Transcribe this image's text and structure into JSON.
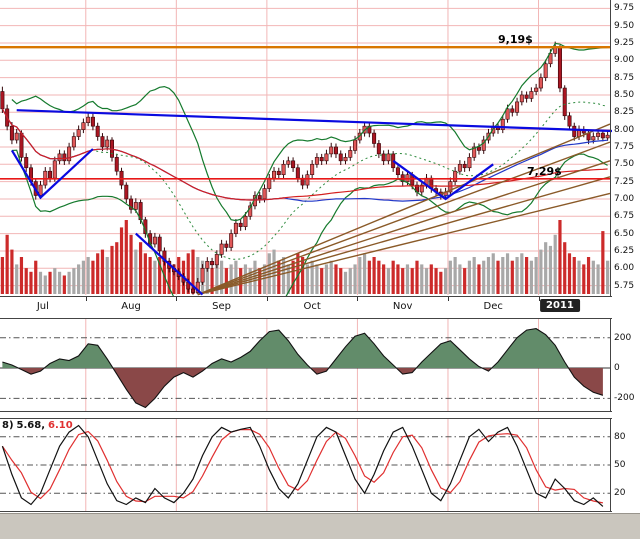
{
  "colors": {
    "grid_pink": "#f2b6b6",
    "panel_border": "#444444",
    "candle_up": "#e05858",
    "candle_down": "#aa1622",
    "candle_outline": "#33060a",
    "volume_up": "#a8a8a8",
    "volume_down": "#cc2a2a",
    "bollinger": "#157a2d",
    "bollinger_mid": "#2d8a3d",
    "ma_long": "#d42020",
    "ma_mid": "#2238c8",
    "trendline": "#0a0ae0",
    "fan": "#8a5a28",
    "osc_line": "#111111",
    "osc_fill_pos": "#628c6a",
    "osc_fill_neg": "#8a4848",
    "stoch_k": "#111111",
    "stoch_d": "#e03030",
    "chrome": "#cac6be",
    "axis_text": "#111111"
  },
  "chart_data": [
    {
      "type": "candlestick",
      "name": "daily-price-panel",
      "x_labels": [
        "Jul",
        "Aug",
        "Sep",
        "Oct",
        "Nov",
        "Dec",
        "2011"
      ],
      "month_start_bars": [
        0,
        18,
        37,
        56,
        75,
        94,
        113
      ],
      "y_ticks": [
        9.75,
        9.5,
        9.25,
        9.0,
        8.75,
        8.5,
        8.25,
        8.0,
        7.75,
        7.5,
        7.25,
        7.0,
        6.75,
        6.5,
        6.25,
        6.0,
        5.75
      ],
      "y_range": [
        5.6,
        9.87
      ],
      "grid": true,
      "candles": [
        [
          8.55,
          8.62,
          8.24,
          8.3
        ],
        [
          8.3,
          8.36,
          7.99,
          8.05
        ],
        [
          8.05,
          8.11,
          7.79,
          7.85
        ],
        [
          7.85,
          8.01,
          7.8,
          7.95
        ],
        [
          7.95,
          7.99,
          7.54,
          7.6
        ],
        [
          7.6,
          7.66,
          7.39,
          7.45
        ],
        [
          7.45,
          7.5,
          7.19,
          7.25
        ],
        [
          7.25,
          7.3,
          6.99,
          7.05
        ],
        [
          7.05,
          7.26,
          7.0,
          7.2
        ],
        [
          7.2,
          7.46,
          7.15,
          7.4
        ],
        [
          7.4,
          7.46,
          7.24,
          7.3
        ],
        [
          7.3,
          7.61,
          7.25,
          7.55
        ],
        [
          7.55,
          7.71,
          7.5,
          7.65
        ],
        [
          7.65,
          7.7,
          7.49,
          7.55
        ],
        [
          7.55,
          7.81,
          7.5,
          7.75
        ],
        [
          7.75,
          7.96,
          7.7,
          7.9
        ],
        [
          7.9,
          8.06,
          7.85,
          8.0
        ],
        [
          8.0,
          8.16,
          7.95,
          8.1
        ],
        [
          8.1,
          8.24,
          8.05,
          8.18
        ],
        [
          8.18,
          8.23,
          7.99,
          8.05
        ],
        [
          8.05,
          8.1,
          7.84,
          7.9
        ],
        [
          7.9,
          7.95,
          7.69,
          7.75
        ],
        [
          7.75,
          7.91,
          7.7,
          7.85
        ],
        [
          7.85,
          7.89,
          7.54,
          7.6
        ],
        [
          7.6,
          7.64,
          7.34,
          7.4
        ],
        [
          7.4,
          7.45,
          7.14,
          7.2
        ],
        [
          7.2,
          7.24,
          6.94,
          7.0
        ],
        [
          7.0,
          7.05,
          6.79,
          6.85
        ],
        [
          6.85,
          7.01,
          6.8,
          6.95
        ],
        [
          6.95,
          6.99,
          6.64,
          6.7
        ],
        [
          6.7,
          6.74,
          6.44,
          6.5
        ],
        [
          6.5,
          6.55,
          6.29,
          6.35
        ],
        [
          6.35,
          6.51,
          6.3,
          6.45
        ],
        [
          6.45,
          6.49,
          6.19,
          6.25
        ],
        [
          6.25,
          6.3,
          6.04,
          6.1
        ],
        [
          6.1,
          6.15,
          5.94,
          6.0
        ],
        [
          6.0,
          6.06,
          5.9,
          5.95
        ],
        [
          5.95,
          6.0,
          5.83,
          5.88
        ],
        [
          5.88,
          5.93,
          5.75,
          5.8
        ],
        [
          5.8,
          5.85,
          5.65,
          5.7
        ],
        [
          5.7,
          5.75,
          5.62,
          5.65
        ],
        [
          5.65,
          5.86,
          5.63,
          5.8
        ],
        [
          5.8,
          6.06,
          5.76,
          6.0
        ],
        [
          6.0,
          6.16,
          5.95,
          6.1
        ],
        [
          6.1,
          6.15,
          5.99,
          6.05
        ],
        [
          6.05,
          6.26,
          6.0,
          6.2
        ],
        [
          6.2,
          6.41,
          6.15,
          6.35
        ],
        [
          6.35,
          6.4,
          6.24,
          6.3
        ],
        [
          6.3,
          6.56,
          6.25,
          6.5
        ],
        [
          6.5,
          6.71,
          6.45,
          6.65
        ],
        [
          6.65,
          6.7,
          6.54,
          6.6
        ],
        [
          6.6,
          6.81,
          6.55,
          6.75
        ],
        [
          6.75,
          6.96,
          6.7,
          6.9
        ],
        [
          6.9,
          7.11,
          6.85,
          7.05
        ],
        [
          7.05,
          7.1,
          6.94,
          7.0
        ],
        [
          7.0,
          7.21,
          6.95,
          7.15
        ],
        [
          7.15,
          7.36,
          7.1,
          7.3
        ],
        [
          7.3,
          7.46,
          7.25,
          7.4
        ],
        [
          7.4,
          7.45,
          7.29,
          7.35
        ],
        [
          7.35,
          7.56,
          7.3,
          7.5
        ],
        [
          7.5,
          7.61,
          7.45,
          7.55
        ],
        [
          7.55,
          7.6,
          7.39,
          7.45
        ],
        [
          7.45,
          7.5,
          7.24,
          7.3
        ],
        [
          7.3,
          7.35,
          7.14,
          7.2
        ],
        [
          7.2,
          7.41,
          7.15,
          7.35
        ],
        [
          7.35,
          7.56,
          7.3,
          7.5
        ],
        [
          7.5,
          7.66,
          7.45,
          7.6
        ],
        [
          7.6,
          7.65,
          7.49,
          7.55
        ],
        [
          7.55,
          7.71,
          7.5,
          7.65
        ],
        [
          7.65,
          7.81,
          7.6,
          7.75
        ],
        [
          7.75,
          7.8,
          7.59,
          7.65
        ],
        [
          7.65,
          7.7,
          7.49,
          7.55
        ],
        [
          7.55,
          7.66,
          7.5,
          7.6
        ],
        [
          7.6,
          7.76,
          7.55,
          7.7
        ],
        [
          7.7,
          7.91,
          7.65,
          7.85
        ],
        [
          7.85,
          8.01,
          7.8,
          7.95
        ],
        [
          7.95,
          8.11,
          7.9,
          8.05
        ],
        [
          8.05,
          8.1,
          7.89,
          7.95
        ],
        [
          7.95,
          8.0,
          7.74,
          7.8
        ],
        [
          7.8,
          7.85,
          7.59,
          7.65
        ],
        [
          7.65,
          7.7,
          7.49,
          7.55
        ],
        [
          7.55,
          7.71,
          7.5,
          7.65
        ],
        [
          7.65,
          7.69,
          7.39,
          7.45
        ],
        [
          7.45,
          7.5,
          7.29,
          7.35
        ],
        [
          7.35,
          7.4,
          7.19,
          7.25
        ],
        [
          7.25,
          7.41,
          7.2,
          7.35
        ],
        [
          7.35,
          7.39,
          7.14,
          7.2
        ],
        [
          7.2,
          7.25,
          7.04,
          7.1
        ],
        [
          7.1,
          7.26,
          7.05,
          7.2
        ],
        [
          7.2,
          7.36,
          7.15,
          7.3
        ],
        [
          7.3,
          7.34,
          7.09,
          7.15
        ],
        [
          7.15,
          7.2,
          7.04,
          7.1
        ],
        [
          7.1,
          7.15,
          6.99,
          7.05
        ],
        [
          7.05,
          7.16,
          7.0,
          7.1
        ],
        [
          7.1,
          7.31,
          7.05,
          7.25
        ],
        [
          7.25,
          7.46,
          7.2,
          7.4
        ],
        [
          7.4,
          7.56,
          7.35,
          7.5
        ],
        [
          7.5,
          7.55,
          7.39,
          7.45
        ],
        [
          7.45,
          7.66,
          7.4,
          7.6
        ],
        [
          7.6,
          7.81,
          7.55,
          7.75
        ],
        [
          7.75,
          7.8,
          7.64,
          7.7
        ],
        [
          7.7,
          7.91,
          7.65,
          7.85
        ],
        [
          7.85,
          8.01,
          7.8,
          7.95
        ],
        [
          7.95,
          8.11,
          7.9,
          8.05
        ],
        [
          8.05,
          8.1,
          7.94,
          8.0
        ],
        [
          8.0,
          8.21,
          7.95,
          8.15
        ],
        [
          8.15,
          8.36,
          8.1,
          8.3
        ],
        [
          8.3,
          8.35,
          8.19,
          8.25
        ],
        [
          8.25,
          8.46,
          8.2,
          8.4
        ],
        [
          8.4,
          8.56,
          8.35,
          8.5
        ],
        [
          8.5,
          8.55,
          8.39,
          8.45
        ],
        [
          8.45,
          8.61,
          8.4,
          8.55
        ],
        [
          8.55,
          8.66,
          8.5,
          8.6
        ],
        [
          8.6,
          8.81,
          8.55,
          8.75
        ],
        [
          8.75,
          9.01,
          8.7,
          8.95
        ],
        [
          8.95,
          9.16,
          8.9,
          9.1
        ],
        [
          9.1,
          9.27,
          9.05,
          9.2
        ],
        [
          9.2,
          9.22,
          8.54,
          8.6
        ],
        [
          8.6,
          8.64,
          8.14,
          8.2
        ],
        [
          8.2,
          8.25,
          7.99,
          8.05
        ],
        [
          8.05,
          8.1,
          7.84,
          7.9
        ],
        [
          7.9,
          8.06,
          7.85,
          8.0
        ],
        [
          8.0,
          8.05,
          7.89,
          7.95
        ],
        [
          7.95,
          8.0,
          7.79,
          7.85
        ],
        [
          7.85,
          7.96,
          7.8,
          7.9
        ],
        [
          7.9,
          8.01,
          7.85,
          7.95
        ],
        [
          7.95,
          7.99,
          7.83,
          7.88
        ],
        [
          7.88,
          7.98,
          7.84,
          7.92
        ]
      ],
      "volume": [
        0.5,
        0.8,
        0.6,
        0.4,
        0.5,
        0.35,
        0.3,
        0.45,
        0.3,
        0.25,
        0.3,
        0.35,
        0.3,
        0.25,
        0.3,
        0.35,
        0.4,
        0.45,
        0.5,
        0.45,
        0.55,
        0.6,
        0.5,
        0.65,
        0.7,
        0.9,
        1.0,
        0.8,
        0.6,
        0.7,
        0.55,
        0.5,
        0.45,
        0.5,
        0.55,
        0.45,
        0.4,
        0.5,
        0.45,
        0.55,
        0.6,
        0.5,
        0.45,
        0.4,
        0.35,
        0.4,
        0.45,
        0.35,
        0.4,
        0.45,
        0.35,
        0.4,
        0.35,
        0.45,
        0.35,
        0.4,
        0.55,
        0.6,
        0.45,
        0.5,
        0.4,
        0.45,
        0.55,
        0.5,
        0.4,
        0.45,
        0.4,
        0.35,
        0.4,
        0.45,
        0.4,
        0.35,
        0.3,
        0.35,
        0.4,
        0.5,
        0.55,
        0.45,
        0.5,
        0.45,
        0.4,
        0.35,
        0.45,
        0.4,
        0.35,
        0.4,
        0.35,
        0.45,
        0.4,
        0.35,
        0.4,
        0.35,
        0.3,
        0.35,
        0.45,
        0.5,
        0.4,
        0.35,
        0.45,
        0.5,
        0.4,
        0.45,
        0.5,
        0.55,
        0.45,
        0.5,
        0.55,
        0.45,
        0.5,
        0.55,
        0.5,
        0.45,
        0.5,
        0.6,
        0.7,
        0.65,
        0.8,
        1.0,
        0.7,
        0.55,
        0.5,
        0.45,
        0.4,
        0.5,
        0.45,
        0.4,
        0.85,
        0.45
      ],
      "overlays": {
        "bollinger": {
          "period": 20,
          "mult": 2
        },
        "ma_long": {
          "period": 150
        },
        "ma_mid": {
          "period": 60
        }
      },
      "hlines": [
        {
          "value": 9.19,
          "label": "9,19$",
          "color": "#d97600",
          "width": 2.4,
          "label_x": 498
        },
        {
          "value": 7.29,
          "label": "7,29$",
          "color": "#e81818",
          "width": 1.6,
          "label_x": 527
        }
      ],
      "trendlines": [
        {
          "points": [
            [
              3,
              8.28
            ],
            [
              128,
              7.98
            ]
          ]
        },
        {
          "points": [
            [
              2,
              7.7
            ],
            [
              8,
              7.02
            ],
            [
              19,
              7.72
            ]
          ]
        },
        {
          "points": [
            [
              28,
              6.5
            ],
            [
              42,
              5.62
            ]
          ]
        },
        {
          "points": [
            [
              82,
              7.55
            ],
            [
              93,
              7.0
            ],
            [
              103,
              7.5
            ]
          ]
        }
      ],
      "fan": {
        "origin": [
          41,
          5.62
        ],
        "end_values": [
          8.08,
          7.82,
          7.55,
          7.32,
          7.08
        ]
      }
    },
    {
      "type": "area",
      "name": "oscillator-panel",
      "y_ticks": [
        200,
        0,
        -200
      ],
      "y_range": [
        -290,
        330
      ],
      "sample_step": 2,
      "values": [
        40,
        20,
        -10,
        -40,
        -20,
        30,
        60,
        50,
        80,
        160,
        150,
        60,
        -40,
        -140,
        -230,
        -260,
        -200,
        -120,
        -60,
        -30,
        -60,
        -20,
        30,
        60,
        40,
        70,
        110,
        180,
        240,
        250,
        180,
        90,
        20,
        -40,
        -20,
        60,
        140,
        210,
        230,
        160,
        80,
        20,
        -40,
        -30,
        40,
        100,
        160,
        180,
        120,
        60,
        10,
        -20,
        40,
        120,
        200,
        250,
        260,
        220,
        150,
        40,
        -60,
        -120,
        -160,
        -180
      ]
    },
    {
      "type": "line",
      "name": "stochastic-panel",
      "y_ticks": [
        80,
        50,
        20
      ],
      "y_range": [
        0,
        100
      ],
      "sample_step": 2,
      "k_values": [
        70,
        40,
        15,
        8,
        20,
        45,
        70,
        85,
        92,
        80,
        55,
        30,
        12,
        8,
        15,
        10,
        25,
        15,
        10,
        20,
        35,
        60,
        80,
        90,
        85,
        88,
        90,
        70,
        45,
        25,
        15,
        30,
        55,
        80,
        90,
        85,
        60,
        35,
        20,
        40,
        65,
        85,
        90,
        70,
        45,
        20,
        12,
        30,
        55,
        80,
        88,
        75,
        85,
        90,
        70,
        45,
        20,
        15,
        35,
        25,
        12,
        8,
        15,
        6
      ],
      "d_smoothing": 3,
      "label": {
        "prefix": "8)",
        "k_value": "5.68,",
        "d_value": "6.10"
      }
    }
  ]
}
